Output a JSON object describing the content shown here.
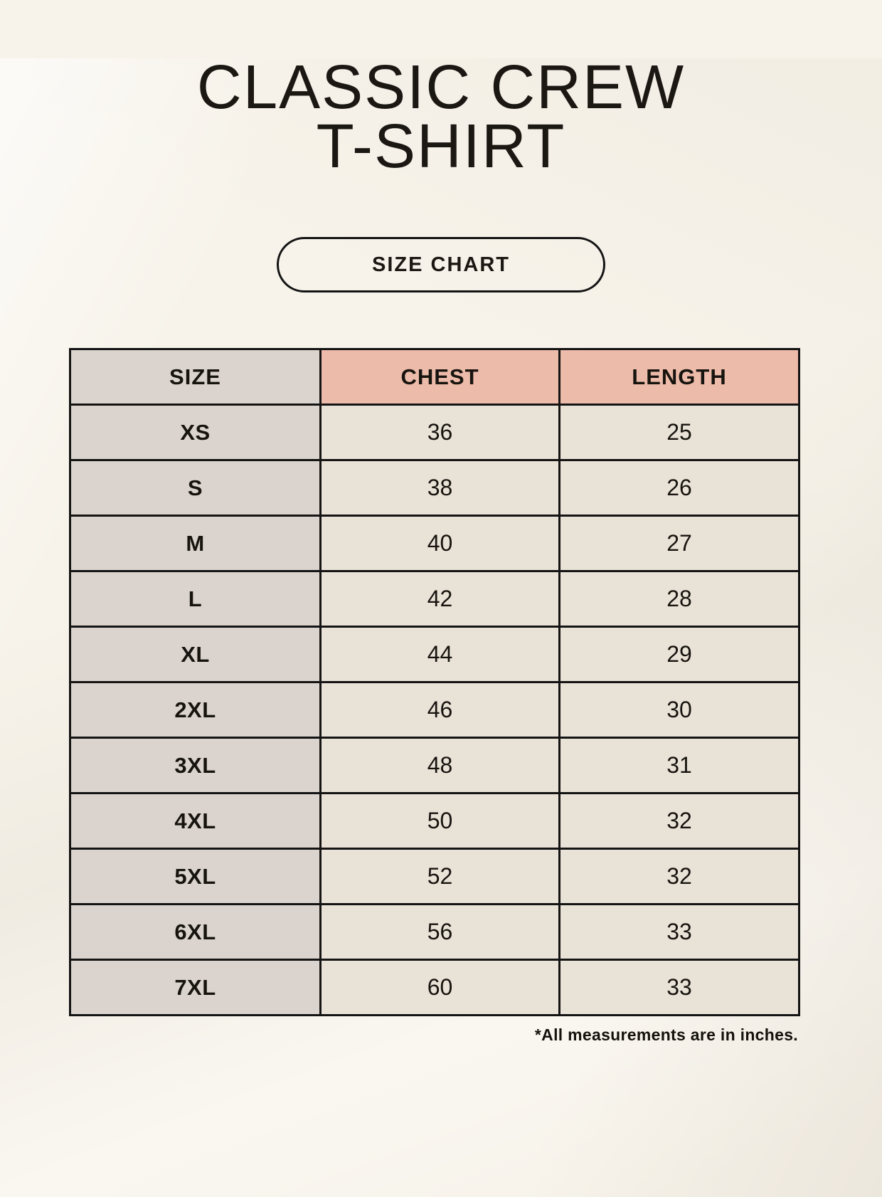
{
  "page": {
    "title_line1": "CLASSIC CREW",
    "title_line2": "T-SHIRT",
    "button_label": "SIZE CHART",
    "footnote": "*All measurements are in inches."
  },
  "table": {
    "columns": [
      "SIZE",
      "CHEST",
      "LENGTH"
    ],
    "rows": [
      {
        "size": "XS",
        "chest": "36",
        "length": "25"
      },
      {
        "size": "S",
        "chest": "38",
        "length": "26"
      },
      {
        "size": "M",
        "chest": "40",
        "length": "27"
      },
      {
        "size": "L",
        "chest": "42",
        "length": "28"
      },
      {
        "size": "XL",
        "chest": "44",
        "length": "29"
      },
      {
        "size": "2XL",
        "chest": "46",
        "length": "30"
      },
      {
        "size": "3XL",
        "chest": "48",
        "length": "31"
      },
      {
        "size": "4XL",
        "chest": "50",
        "length": "32"
      },
      {
        "size": "5XL",
        "chest": "52",
        "length": "32"
      },
      {
        "size": "6XL",
        "chest": "56",
        "length": "33"
      },
      {
        "size": "7XL",
        "chest": "60",
        "length": "33"
      }
    ]
  },
  "colors": {
    "background": "#f7f3ea",
    "header_accent": "#edbbaa",
    "size_column_gray": "#dbd4ce",
    "cell_cream": "#e9e2d7",
    "border_black": "#141414",
    "text_black": "#17140f"
  }
}
